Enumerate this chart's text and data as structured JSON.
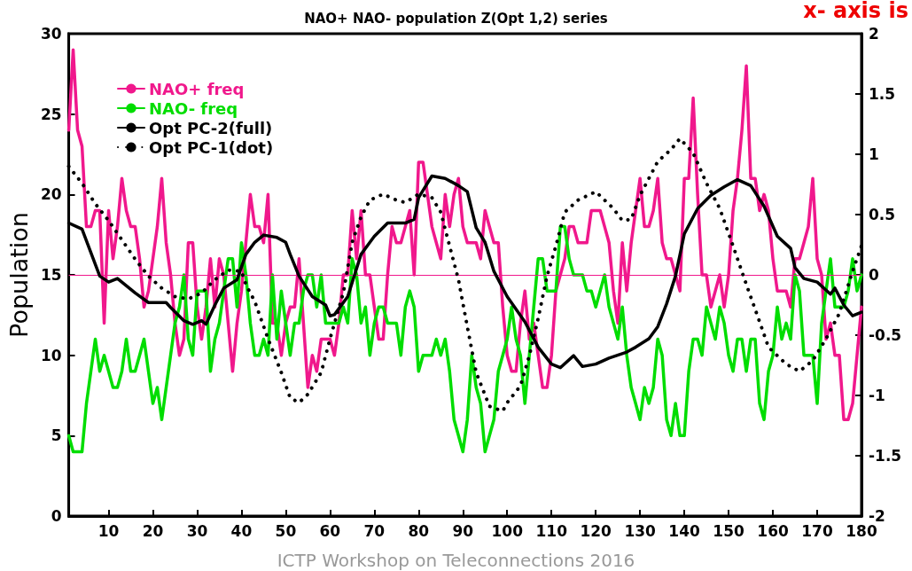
{
  "chart_data": {
    "type": "line",
    "title": "NAO+ NAO- population Z(Opt 1,2) series",
    "ylabel": "Population",
    "annotations": [
      "x- axis is",
      "ICTP Workshop on Teleconnections 2016"
    ],
    "x": [
      1,
      2,
      3,
      4,
      5,
      6,
      7,
      8,
      9,
      10,
      11,
      12,
      13,
      14,
      15,
      16,
      17,
      18,
      19,
      20,
      21,
      22,
      23,
      24,
      25,
      26,
      27,
      28,
      29,
      30,
      31,
      32,
      33,
      34,
      35,
      36,
      37,
      38,
      39,
      40,
      41,
      42,
      43,
      44,
      45,
      46,
      47,
      48,
      49,
      50,
      51,
      52,
      53,
      54,
      55,
      56,
      57,
      58,
      59,
      60,
      61,
      62,
      63,
      64,
      65,
      66,
      67,
      68,
      69,
      70,
      71,
      72,
      73,
      74,
      75,
      76,
      77,
      78,
      79,
      80,
      81,
      82,
      83,
      84,
      85,
      86,
      87,
      88,
      89,
      90,
      91,
      92,
      93,
      94,
      95,
      96,
      97,
      98,
      99,
      100,
      101,
      102,
      103,
      104,
      105,
      106,
      107,
      108,
      109,
      110,
      111,
      112,
      113,
      114,
      115,
      116,
      117,
      118,
      119,
      120,
      121,
      122,
      123,
      124,
      125,
      126,
      127,
      128,
      129,
      130,
      131,
      132,
      133,
      134,
      135,
      136,
      137,
      138,
      139,
      140,
      141,
      142,
      143,
      144,
      145,
      146,
      147,
      148,
      149,
      150,
      151,
      152,
      153,
      154,
      155,
      156,
      157,
      158,
      159,
      160,
      161,
      162,
      163,
      164,
      165,
      166,
      167,
      168,
      169,
      170,
      171,
      172,
      173,
      174,
      175,
      176,
      177,
      178,
      179,
      180
    ],
    "series": [
      {
        "name": "NAO+ freq",
        "color": "#f0188c",
        "values": [
          24,
          29,
          24,
          23,
          18,
          18,
          19,
          19,
          12,
          19,
          16,
          18,
          21,
          19,
          18,
          18,
          16,
          13,
          14,
          16,
          18,
          21,
          17,
          15,
          12,
          10,
          11,
          17,
          17,
          13,
          11,
          13,
          16,
          13,
          16,
          15,
          12,
          9,
          12,
          14,
          17,
          20,
          18,
          18,
          17,
          20,
          12,
          12,
          10,
          12,
          13,
          13,
          16,
          12,
          8,
          10,
          9,
          11,
          11,
          11,
          10,
          12,
          15,
          15,
          19,
          16,
          19,
          15,
          15,
          13,
          11,
          11,
          15,
          18,
          17,
          17,
          18,
          19,
          15,
          22,
          22,
          20,
          18,
          17,
          16,
          20,
          18,
          20,
          21,
          18,
          17,
          17,
          17,
          16,
          19,
          18,
          17,
          17,
          13,
          10,
          9,
          9,
          12,
          14,
          11,
          12,
          10,
          8,
          8,
          10,
          14,
          15,
          16,
          18,
          18,
          17,
          17,
          17,
          19,
          19,
          19,
          18,
          17,
          14,
          12,
          17,
          14,
          17,
          19,
          21,
          18,
          18,
          19,
          21,
          17,
          16,
          16,
          15,
          14,
          21,
          21,
          26,
          20,
          15,
          15,
          13,
          14,
          15,
          13,
          15,
          19,
          21,
          24,
          28,
          21,
          21,
          19,
          20,
          19,
          16,
          14,
          14,
          14,
          13,
          16,
          16,
          17,
          18,
          21,
          16,
          15,
          11,
          12,
          10,
          10,
          6,
          6,
          7,
          10,
          13
        ]
      },
      {
        "name": "NAO- freq",
        "color": "#00dd00",
        "values": [
          5,
          4,
          4,
          4,
          7,
          9,
          11,
          9,
          10,
          9,
          8,
          8,
          9,
          11,
          9,
          9,
          10,
          11,
          9,
          7,
          8,
          6,
          8,
          10,
          12,
          13,
          15,
          11,
          10,
          14,
          14,
          14,
          9,
          11,
          12,
          14,
          16,
          16,
          13,
          17,
          15,
          12,
          10,
          10,
          11,
          10,
          15,
          11,
          14,
          12,
          10,
          12,
          12,
          14,
          15,
          15,
          13,
          15,
          12,
          12,
          12,
          12,
          13,
          12,
          16,
          15,
          12,
          13,
          10,
          12,
          13,
          13,
          12,
          12,
          12,
          10,
          13,
          14,
          13,
          9,
          10,
          10,
          10,
          11,
          10,
          11,
          9,
          6,
          5,
          4,
          6,
          10,
          8,
          7,
          4,
          5,
          6,
          9,
          10,
          11,
          13,
          11,
          10,
          7,
          10,
          13,
          16,
          16,
          14,
          14,
          14,
          18,
          18,
          16,
          15,
          15,
          15,
          14,
          14,
          13,
          14,
          15,
          13,
          12,
          11,
          13,
          10,
          8,
          7,
          6,
          8,
          7,
          8,
          11,
          10,
          6,
          5,
          7,
          5,
          5,
          9,
          11,
          11,
          10,
          13,
          12,
          11,
          13,
          12,
          10,
          9,
          11,
          11,
          9,
          11,
          11,
          7,
          6,
          9,
          10,
          13,
          11,
          12,
          11,
          15,
          14,
          10,
          10,
          10,
          7,
          12,
          14,
          16,
          13,
          13,
          13,
          14,
          16,
          14,
          15
        ]
      },
      {
        "name": "Opt PC-2(full)",
        "color": "#000000",
        "axis": "y2",
        "line_style": "solid",
        "x": [
          1,
          4,
          8,
          10,
          12,
          16,
          19,
          23,
          24,
          27,
          29,
          31,
          32,
          34,
          36,
          39,
          41,
          43,
          45,
          48,
          50,
          51,
          53,
          56,
          59,
          60,
          61,
          64,
          67,
          69,
          70,
          73,
          77,
          79,
          80,
          83,
          86,
          89,
          91,
          93,
          95,
          97,
          100,
          104,
          107,
          110,
          112,
          115,
          117,
          120,
          123,
          127,
          129,
          132,
          134,
          136,
          138,
          140,
          143,
          146,
          149,
          152,
          155,
          158,
          161,
          164,
          165,
          167,
          170,
          173,
          174,
          176,
          178,
          180
        ],
        "values": [
          0.43,
          0.38,
          -0.01,
          -0.06,
          -0.03,
          -0.15,
          -0.23,
          -0.23,
          -0.27,
          -0.38,
          -0.41,
          -0.38,
          -0.41,
          -0.25,
          -0.11,
          -0.04,
          0.17,
          0.27,
          0.33,
          0.31,
          0.27,
          0.17,
          -0.01,
          -0.18,
          -0.25,
          -0.34,
          -0.33,
          -0.18,
          0.17,
          0.27,
          0.32,
          0.43,
          0.43,
          0.46,
          0.64,
          0.82,
          0.8,
          0.74,
          0.69,
          0.39,
          0.27,
          0.03,
          -0.18,
          -0.39,
          -0.6,
          -0.74,
          -0.77,
          -0.67,
          -0.76,
          -0.74,
          -0.69,
          -0.64,
          -0.6,
          -0.53,
          -0.43,
          -0.24,
          -0.01,
          0.34,
          0.55,
          0.66,
          0.73,
          0.79,
          0.74,
          0.57,
          0.32,
          0.22,
          0.06,
          -0.03,
          -0.06,
          -0.16,
          -0.11,
          -0.25,
          -0.34,
          -0.31
        ]
      },
      {
        "name": "Opt PC-1(dot)",
        "color": "#000000",
        "axis": "y2",
        "line_style": "dotted",
        "x": [
          1,
          4,
          7,
          10,
          13,
          16,
          19,
          22,
          25,
          28,
          31,
          34,
          37,
          40,
          41,
          43,
          46,
          49,
          51,
          53,
          55,
          58,
          60,
          63,
          65,
          67,
          69,
          72,
          75,
          77,
          80,
          83,
          85,
          87,
          89,
          91,
          93,
          96,
          99,
          100,
          103,
          105,
          107,
          109,
          111,
          113,
          116,
          120,
          124,
          126,
          128,
          130,
          134,
          137,
          139,
          142,
          145,
          148,
          151,
          154,
          157,
          159,
          163,
          166,
          169,
          172,
          175,
          178,
          180
        ],
        "values": [
          0.9,
          0.76,
          0.59,
          0.45,
          0.29,
          0.13,
          -0.01,
          -0.11,
          -0.18,
          -0.2,
          -0.15,
          -0.04,
          0.04,
          0.03,
          -0.08,
          -0.22,
          -0.53,
          -0.81,
          -1.02,
          -1.06,
          -0.99,
          -0.81,
          -0.53,
          -0.15,
          0.27,
          0.48,
          0.62,
          0.67,
          0.62,
          0.6,
          0.67,
          0.64,
          0.52,
          0.24,
          -0.04,
          -0.43,
          -0.81,
          -1.09,
          -1.13,
          -1.06,
          -0.92,
          -0.67,
          -0.36,
          -0.01,
          0.24,
          0.52,
          0.62,
          0.69,
          0.55,
          0.45,
          0.46,
          0.66,
          0.94,
          1.04,
          1.13,
          1.01,
          0.76,
          0.55,
          0.24,
          -0.08,
          -0.39,
          -0.6,
          -0.74,
          -0.8,
          -0.71,
          -0.53,
          -0.32,
          0.03,
          0.24
        ]
      }
    ],
    "xlim": [
      1,
      180
    ],
    "xticks": [
      10,
      20,
      30,
      40,
      50,
      60,
      70,
      80,
      90,
      100,
      110,
      120,
      130,
      140,
      150,
      160,
      170,
      180
    ],
    "ylim": [
      0,
      30
    ],
    "yticks": [
      0,
      5,
      10,
      15,
      20,
      25,
      30
    ],
    "y2lim": [
      -2,
      2
    ],
    "y2ticks": [
      -2,
      -1.5,
      -1,
      -0.5,
      0,
      0.5,
      1,
      1.5,
      2
    ],
    "ref_lines": [
      {
        "axis": "y",
        "value": 15,
        "label": null,
        "color": "#f0188c"
      }
    ],
    "legend": "top left",
    "grid": false,
    "marker": "none"
  }
}
